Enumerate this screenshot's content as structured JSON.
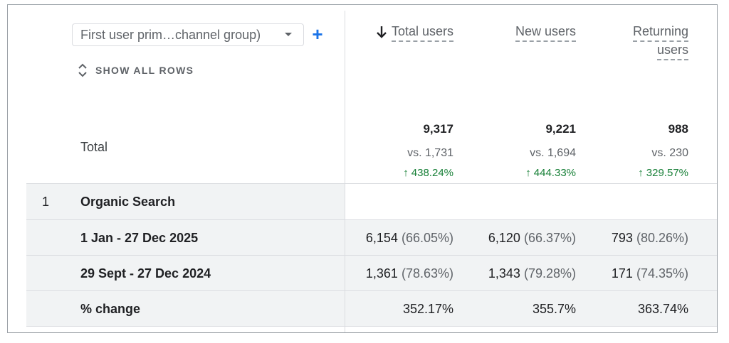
{
  "dimension": {
    "select_label": "First user prim…channel group)",
    "add_symbol": "+"
  },
  "show_all_label": "SHOW ALL ROWS",
  "columns": [
    {
      "line1": "Total users",
      "line2": "",
      "sorted": true
    },
    {
      "line1": "New users",
      "line2": "",
      "sorted": false
    },
    {
      "line1": "Returning",
      "line2": "users",
      "sorted": false
    }
  ],
  "total": {
    "label": "Total",
    "values": [
      "9,317",
      "9,221",
      "988"
    ],
    "vs": [
      "vs. 1,731",
      "vs. 1,694",
      "vs. 230"
    ],
    "changes": [
      "438.24%",
      "444.33%",
      "329.57%"
    ]
  },
  "group": {
    "index": "1",
    "name": "Organic Search"
  },
  "rows": [
    {
      "name": "1 Jan - 27 Dec 2025",
      "cells": [
        {
          "value": "6,154",
          "pct": "(66.05%)"
        },
        {
          "value": "6,120",
          "pct": "(66.37%)"
        },
        {
          "value": "793",
          "pct": "(80.26%)"
        }
      ]
    },
    {
      "name": "29 Sept - 27 Dec 2024",
      "cells": [
        {
          "value": "1,361",
          "pct": "(78.63%)"
        },
        {
          "value": "1,343",
          "pct": "(79.28%)"
        },
        {
          "value": "171",
          "pct": "(74.35%)"
        }
      ]
    },
    {
      "name": "% change",
      "cells": [
        {
          "value": "352.17%",
          "pct": ""
        },
        {
          "value": "355.7%",
          "pct": ""
        },
        {
          "value": "363.74%",
          "pct": ""
        }
      ]
    }
  ],
  "colors": {
    "accent": "#1a73e8",
    "positive": "#188038",
    "row_shade": "#f1f3f4",
    "divider": "#dadce0"
  }
}
